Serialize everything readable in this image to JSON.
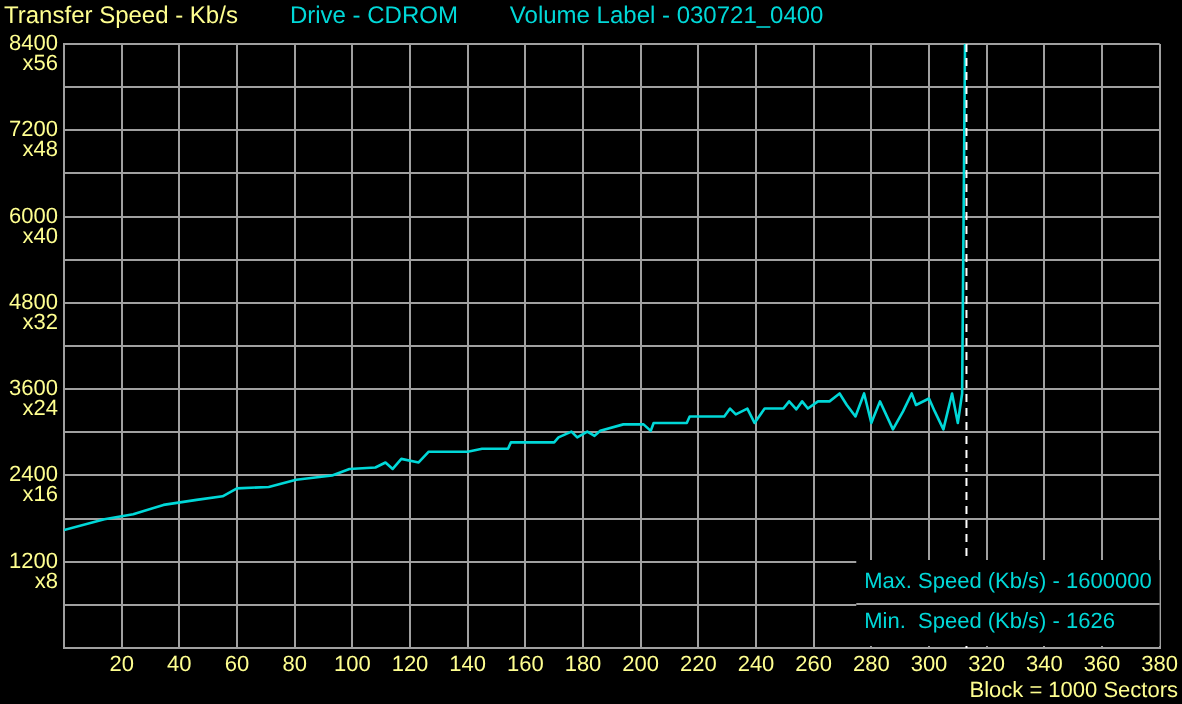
{
  "chart_data": {
    "type": "line",
    "ylabel": "Transfer Speed - Kb/s",
    "xlabel": "Block = 1000 Sectors",
    "annotations": [
      "Drive - CDROM",
      "Volume Label - 030721_0400",
      "Max. Speed (Kb/s) - 1600000",
      "Min.  Speed (Kb/s) - 1626",
      "x8",
      "x16",
      "x24",
      "x32",
      "x40",
      "x48",
      "x56"
    ],
    "xlim": [
      0,
      380
    ],
    "xticks": [
      20,
      40,
      60,
      80,
      100,
      120,
      140,
      160,
      180,
      200,
      220,
      240,
      260,
      280,
      300,
      320,
      340,
      360,
      380
    ],
    "ylim": [
      0,
      8400
    ],
    "yticks": [
      {
        "value": 600,
        "label": null
      },
      1200,
      {
        "value": 1800,
        "label": null
      },
      2400,
      {
        "value": 3000,
        "label": null
      },
      3600,
      {
        "value": 4200,
        "label": null
      },
      4800,
      {
        "value": 5400,
        "label": null
      },
      6000,
      {
        "value": 6600,
        "label": null
      },
      7200,
      {
        "value": 7800,
        "label": null
      },
      8400
    ],
    "grid": true,
    "legend": false,
    "marker": "none",
    "line_style": "solid",
    "ref_lines": [
      {
        "axis": "x",
        "value": 313,
        "color": "#ffffff",
        "line_style": "dashed"
      }
    ],
    "series": [
      {
        "color": "#00d8d8",
        "x": [
          0,
          14,
          24,
          34.5,
          46,
          55,
          60,
          71,
          80.5,
          93,
          99,
          108,
          111.5,
          114,
          117,
          123,
          126.5,
          140,
          145,
          154,
          155,
          170,
          171.5,
          176,
          178,
          181.5,
          184,
          186,
          194,
          201,
          203.5,
          204.5,
          216,
          217,
          229,
          231,
          233,
          237,
          239.5,
          243,
          249.5,
          251.5,
          254,
          256,
          258,
          261.5,
          265.5,
          269,
          271.5,
          274.5,
          277.5,
          280,
          283,
          287.5,
          291,
          294,
          295.5,
          300,
          302,
          305,
          308,
          310,
          311.5,
          312.5
        ],
        "values": [
          1640,
          1790,
          1860,
          1990,
          2060,
          2110,
          2220,
          2240,
          2340,
          2400,
          2490,
          2510,
          2580,
          2490,
          2630,
          2580,
          2730,
          2730,
          2770,
          2770,
          2860,
          2860,
          2930,
          3010,
          2930,
          3010,
          2950,
          3020,
          3110,
          3110,
          3020,
          3130,
          3130,
          3220,
          3220,
          3330,
          3250,
          3330,
          3130,
          3330,
          3330,
          3430,
          3320,
          3430,
          3330,
          3430,
          3430,
          3540,
          3380,
          3220,
          3540,
          3130,
          3430,
          3040,
          3290,
          3540,
          3380,
          3470,
          3290,
          3040,
          3540,
          3130,
          3540,
          8400
        ]
      }
    ]
  }
}
